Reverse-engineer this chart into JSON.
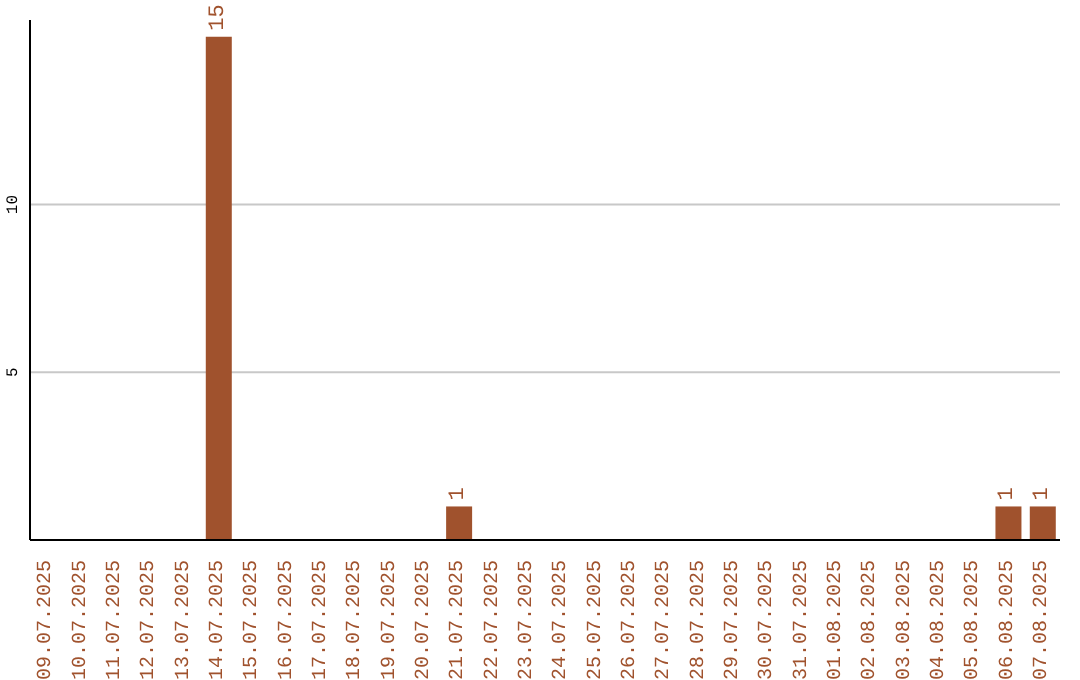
{
  "chart_data": {
    "type": "bar",
    "categories": [
      "09.07.2025",
      "10.07.2025",
      "11.07.2025",
      "12.07.2025",
      "13.07.2025",
      "14.07.2025",
      "15.07.2025",
      "16.07.2025",
      "17.07.2025",
      "18.07.2025",
      "19.07.2025",
      "20.07.2025",
      "21.07.2025",
      "22.07.2025",
      "23.07.2025",
      "24.07.2025",
      "25.07.2025",
      "26.07.2025",
      "27.07.2025",
      "28.07.2025",
      "29.07.2025",
      "30.07.2025",
      "31.07.2025",
      "01.08.2025",
      "02.08.2025",
      "03.08.2025",
      "04.08.2025",
      "05.08.2025",
      "06.08.2025",
      "07.08.2025"
    ],
    "values": [
      0,
      0,
      0,
      0,
      0,
      15,
      0,
      0,
      0,
      0,
      0,
      0,
      1,
      0,
      0,
      0,
      0,
      0,
      0,
      0,
      0,
      0,
      0,
      0,
      0,
      0,
      0,
      0,
      1,
      1
    ],
    "value_labels": [
      null,
      null,
      null,
      null,
      null,
      "15",
      null,
      null,
      null,
      null,
      null,
      null,
      "1",
      null,
      null,
      null,
      null,
      null,
      null,
      null,
      null,
      null,
      null,
      null,
      null,
      null,
      null,
      null,
      "1",
      "1"
    ],
    "color": "#a0522d",
    "ylim": [
      0,
      15.5
    ],
    "yticks": [
      5,
      10
    ],
    "grid": "y",
    "legend": false
  }
}
